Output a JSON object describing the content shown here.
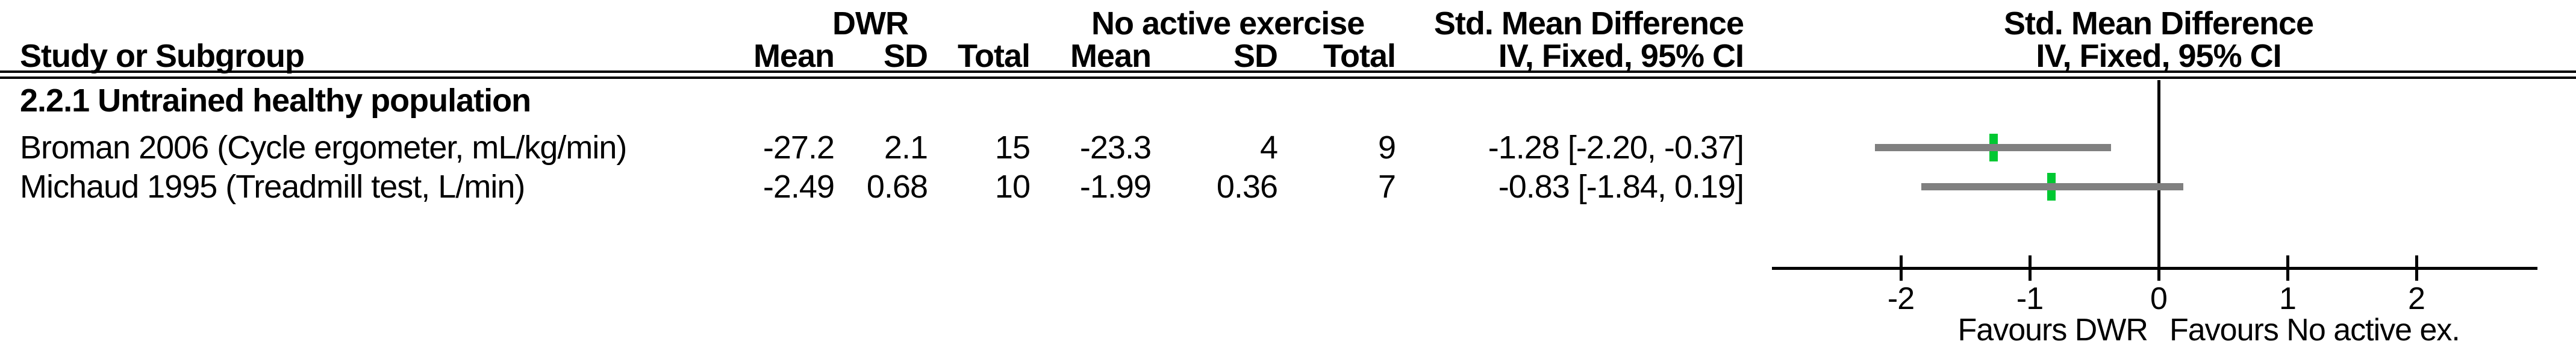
{
  "table": {
    "group_headers": {
      "dwr": "DWR",
      "control": "No active exercise",
      "effect_line1": "Std. Mean Difference",
      "effect_line2": "IV, Fixed, 95% CI"
    },
    "column_headers": {
      "study": "Study or Subgroup",
      "mean1": "Mean",
      "sd1": "SD",
      "total1": "Total",
      "mean2": "Mean",
      "sd2": "SD",
      "total2": "Total",
      "ci": "IV, Fixed, 95% CI"
    },
    "subgroup_title": "2.2.1 Untrained healthy population",
    "rows": [
      {
        "study": "Broman 2006 (Cycle ergometer, mL/kg/min)",
        "mean1": "-27.2",
        "sd1": "2.1",
        "total1": "15",
        "mean2": "-23.3",
        "sd2": "4",
        "total2": "9",
        "ci_text": "-1.28 [-2.20, -0.37]"
      },
      {
        "study": "Michaud 1995 (Treadmill test, L/min)",
        "mean1": "-2.49",
        "sd1": "0.68",
        "total1": "10",
        "mean2": "-1.99",
        "sd2": "0.36",
        "total2": "7",
        "ci_text": "-0.83 [-1.84, 0.19]"
      }
    ]
  },
  "plot_header": {
    "line1": "Std. Mean Difference",
    "line2": "IV, Fixed, 95% CI"
  },
  "chart_data": {
    "type": "forest",
    "effect_measure": "Std. Mean Difference",
    "method": "IV, Fixed, 95% CI",
    "group_labels": [
      "DWR",
      "No active exercise"
    ],
    "subgroup": "2.2.1 Untrained healthy population",
    "studies": [
      {
        "label": "Broman 2006 (Cycle ergometer, mL/kg/min)",
        "dwr": {
          "mean": -27.2,
          "sd": 2.1,
          "total": 15
        },
        "control": {
          "mean": -23.3,
          "sd": 4,
          "total": 9
        },
        "smd": -1.28,
        "ci_low": -2.2,
        "ci_high": -0.37
      },
      {
        "label": "Michaud 1995 (Treadmill test, L/min)",
        "dwr": {
          "mean": -2.49,
          "sd": 0.68,
          "total": 10
        },
        "control": {
          "mean": -1.99,
          "sd": 0.36,
          "total": 7
        },
        "smd": -0.83,
        "ci_low": -1.84,
        "ci_high": 0.19
      }
    ],
    "xaxis": {
      "ticks": [
        -2,
        -1,
        0,
        1,
        2
      ],
      "min": -3.0,
      "max": 2.94,
      "label_left": "Favours DWR",
      "label_right": "Favours No active ex."
    },
    "colors": {
      "marker_green": "#00c832",
      "ci_gray": "#808080",
      "axis_black": "#000000"
    },
    "grid": false,
    "legend": false
  }
}
